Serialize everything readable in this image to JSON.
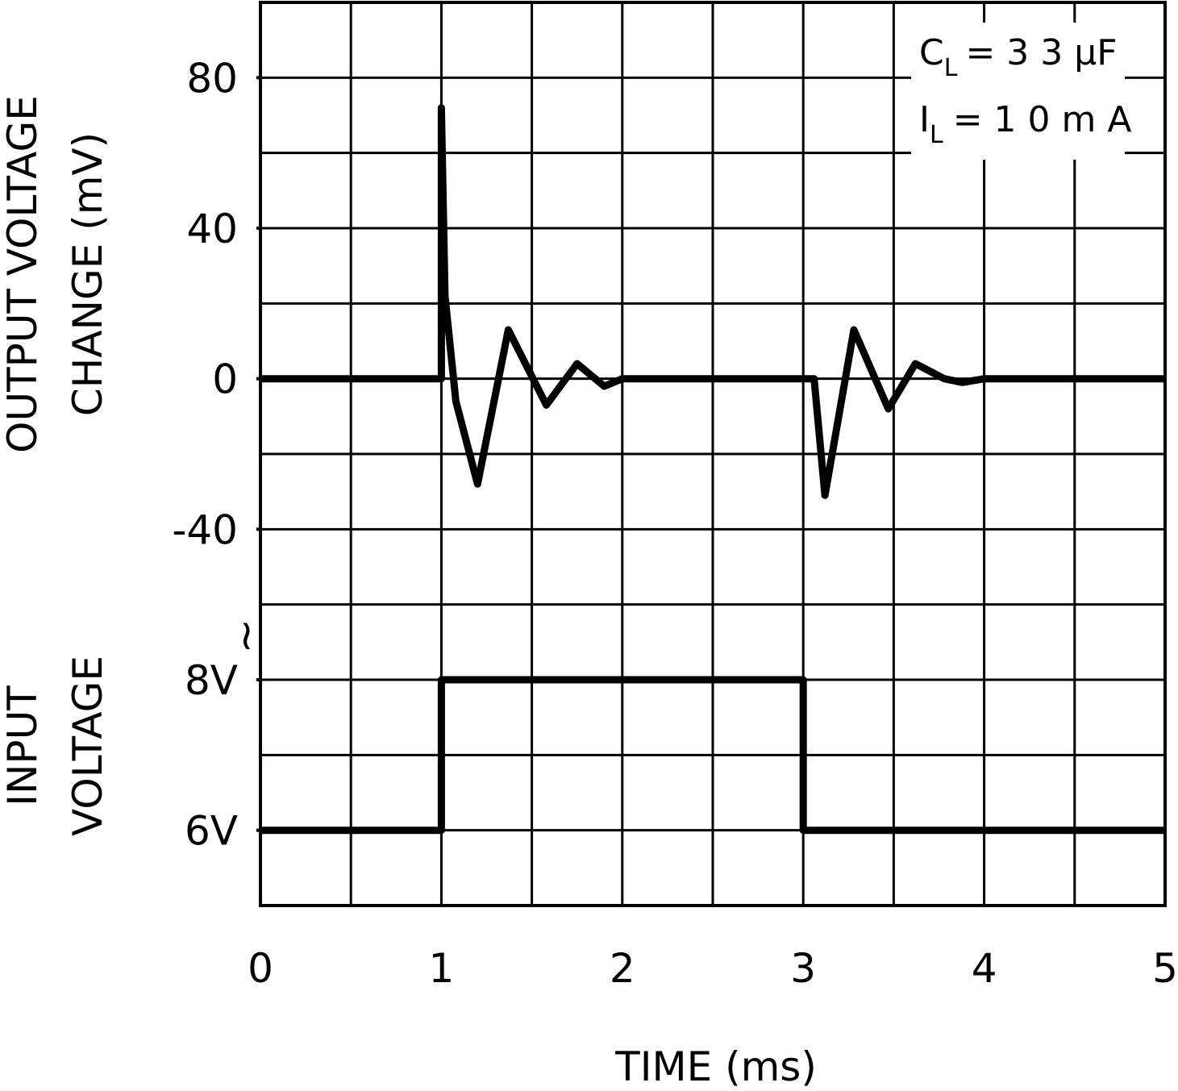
{
  "chart_data": {
    "type": "line",
    "xlabel": "TIME (ms)",
    "x_ticks": [
      "0",
      "1",
      "2",
      "3",
      "4",
      "5"
    ],
    "xlim": [
      0,
      5
    ],
    "top_panel": {
      "ylabel_line1": "OUTPUT VOLTAGE",
      "ylabel_line2": "CHANGE (mV)",
      "y_ticks": [
        "80",
        "40",
        "0",
        "-40"
      ],
      "ylim": [
        -60,
        100
      ],
      "series": [
        {
          "x": [
            0,
            1.0,
            1.0,
            1.02,
            1.08,
            1.2,
            1.37,
            1.58,
            1.75,
            1.9,
            2.0,
            3.0,
            3.06,
            3.12,
            3.28,
            3.47,
            3.62,
            3.78,
            3.88,
            4.0,
            5.0
          ],
          "y": [
            0,
            0,
            72,
            22,
            -6,
            -28,
            13,
            -7,
            4,
            -2,
            0,
            0,
            0,
            -31,
            13,
            -8,
            4,
            0,
            -1,
            0,
            0
          ]
        }
      ]
    },
    "bottom_panel": {
      "ylabel_line1": "INPUT",
      "ylabel_line2": "VOLTAGE",
      "y_ticks": [
        "8V",
        "6V"
      ],
      "ylim": [
        5,
        9
      ],
      "series": [
        {
          "x": [
            0,
            1.0,
            1.0,
            3.0,
            3.0,
            5.0
          ],
          "y": [
            6,
            6,
            8,
            8,
            6,
            6
          ]
        }
      ]
    },
    "annotations": {
      "cl_main": "C",
      "cl_sub": "L",
      "cl_value": "= 3 3  μF",
      "il_main": "I",
      "il_sub": "L",
      "il_value": "= 1 0  m A"
    },
    "grid": true,
    "break_symbol": "≀"
  }
}
